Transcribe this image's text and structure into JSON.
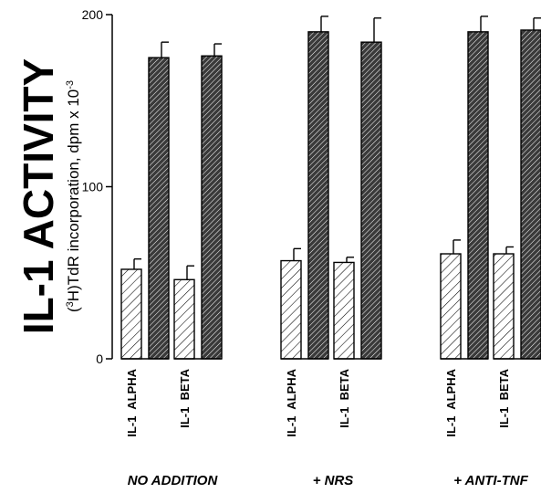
{
  "chart_data": {
    "type": "bar",
    "title": "",
    "ylabel_main": "IL-1 ACTIVITY",
    "ylabel_sub_pre": "(",
    "ylabel_sub_sup1": "3",
    "ylabel_sub_mid": "H)TdR incorporation, dpm x 10",
    "ylabel_sub_sup2": "-3",
    "ylim": [
      0,
      200
    ],
    "yticks": [
      "0",
      "100",
      "200"
    ],
    "groups": [
      "NO ADDITION",
      "+ NRS",
      "+ ANTI-TNF"
    ],
    "categories": [
      "IL-1  ALPHA",
      "IL-1  BETA",
      "IL-1  ALPHA",
      "IL-1  BETA",
      "IL-1  ALPHA",
      "IL-1  BETA"
    ],
    "series": [
      {
        "values": [
          52,
          46,
          57,
          56,
          61,
          61
        ],
        "errors": [
          6,
          8,
          7,
          3,
          8,
          4
        ]
      },
      {
        "values": [
          175,
          176,
          190,
          184,
          190,
          191
        ],
        "errors": [
          9,
          7,
          9,
          14,
          9,
          7
        ]
      }
    ],
    "colors": {
      "stroke": "#000000",
      "light_hatch": "#ffffff",
      "dark_hatch": "#2b2b2b"
    }
  }
}
